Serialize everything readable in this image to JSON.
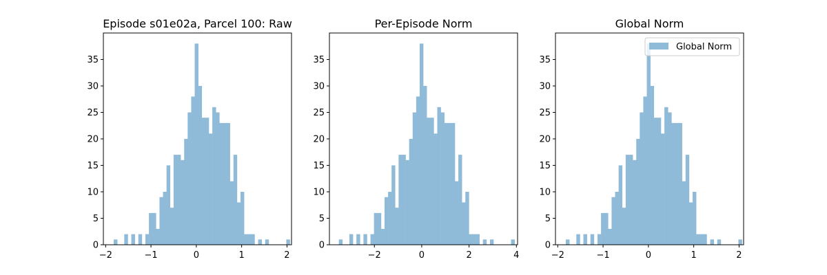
{
  "chart_data": [
    {
      "type": "bar",
      "title": "Episode s01e02a, Parcel 100: Raw",
      "xlabel": "",
      "ylabel": "",
      "xlim": [
        -2.05,
        2.1
      ],
      "ylim": [
        0,
        40
      ],
      "xticks": [
        -2,
        -1,
        0,
        1,
        2
      ],
      "yticks": [
        0,
        5,
        10,
        15,
        20,
        25,
        30,
        35
      ],
      "xtick_labels": [
        "−2",
        "−1",
        "0",
        "1",
        "2"
      ],
      "ytick_labels": [
        "0",
        "5",
        "10",
        "15",
        "20",
        "25",
        "30",
        "35"
      ],
      "bin_start": -1.9,
      "bin_width": 0.0777,
      "counts": [
        0,
        1,
        0,
        0,
        2,
        0,
        2,
        0,
        2,
        0,
        2,
        6,
        6,
        3,
        9,
        10,
        15,
        7,
        17,
        17,
        16,
        20,
        25,
        28,
        38,
        30,
        24,
        24,
        21,
        26,
        25,
        23,
        23,
        23,
        12,
        17,
        8,
        10,
        2,
        2,
        2,
        0,
        1,
        0,
        1,
        0,
        0,
        0,
        0,
        0,
        1
      ],
      "color": "#8fbbd9",
      "legend": null
    },
    {
      "type": "bar",
      "title": "Per-Episode Norm",
      "xlabel": "",
      "ylabel": "",
      "xlim": [
        -3.9,
        4.05
      ],
      "ylim": [
        0,
        40
      ],
      "xticks": [
        -2,
        0,
        2,
        4
      ],
      "yticks": [
        0,
        5,
        10,
        15,
        20,
        25,
        30,
        35
      ],
      "xtick_labels": [
        "−2",
        "0",
        "2",
        "4"
      ],
      "ytick_labels": [
        "0",
        "5",
        "10",
        "15",
        "20",
        "25",
        "30",
        "35"
      ],
      "bin_start": -3.65,
      "bin_width": 0.1485,
      "counts": [
        0,
        1,
        0,
        0,
        2,
        0,
        2,
        0,
        2,
        0,
        2,
        6,
        6,
        3,
        9,
        10,
        15,
        7,
        17,
        17,
        16,
        20,
        25,
        28,
        38,
        30,
        24,
        24,
        21,
        26,
        25,
        23,
        23,
        23,
        12,
        17,
        8,
        10,
        2,
        2,
        2,
        0,
        1,
        0,
        1,
        0,
        0,
        0,
        0,
        0,
        1
      ],
      "color": "#8fbbd9",
      "legend": null
    },
    {
      "type": "bar",
      "title": "Global Norm",
      "xlabel": "",
      "ylabel": "",
      "xlim": [
        -2.05,
        2.1
      ],
      "ylim": [
        0,
        40
      ],
      "xticks": [
        -2,
        -1,
        0,
        1,
        2
      ],
      "yticks": [
        0,
        5,
        10,
        15,
        20,
        25,
        30,
        35
      ],
      "xtick_labels": [
        "−2",
        "−1",
        "0",
        "1",
        "2"
      ],
      "ytick_labels": [
        "0",
        "5",
        "10",
        "15",
        "20",
        "25",
        "30",
        "35"
      ],
      "bin_start": -1.9,
      "bin_width": 0.0777,
      "counts": [
        0,
        1,
        0,
        0,
        2,
        0,
        2,
        0,
        2,
        0,
        2,
        6,
        6,
        3,
        9,
        10,
        15,
        7,
        17,
        17,
        16,
        20,
        25,
        28,
        38,
        30,
        24,
        24,
        21,
        26,
        25,
        23,
        23,
        23,
        12,
        17,
        8,
        10,
        2,
        2,
        2,
        0,
        1,
        0,
        1,
        0,
        0,
        0,
        0,
        0,
        1
      ],
      "color": "#8fbbd9",
      "legend": {
        "label": "Global Norm",
        "placement": "top-right"
      }
    }
  ]
}
